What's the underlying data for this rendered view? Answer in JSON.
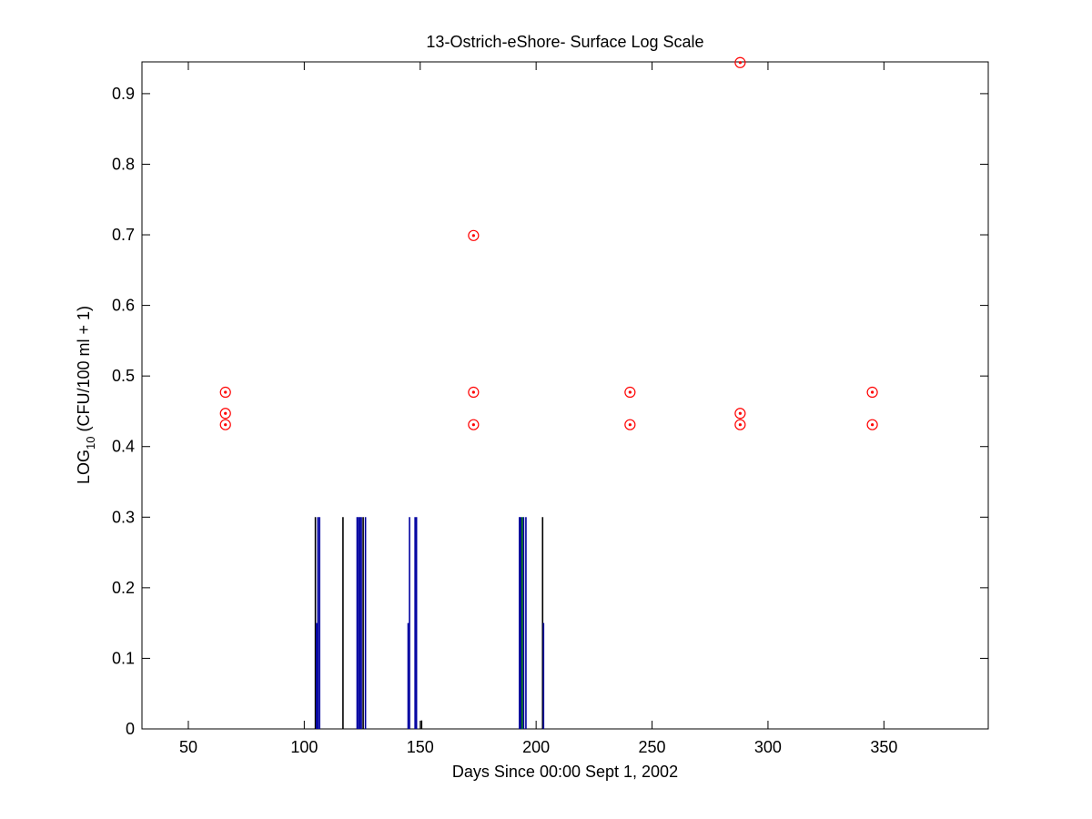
{
  "chart_data": {
    "type": "scatter",
    "title": "13-Ostrich-eShore- Surface Log Scale",
    "xlabel": "Days Since 00:00 Sept 1, 2002",
    "ylabel_main": "LOG",
    "ylabel_sub": "10",
    "ylabel_rest": " (CFU/100 ml + 1)",
    "xlim": [
      30,
      395
    ],
    "ylim": [
      0,
      0.945
    ],
    "xticks": [
      50,
      100,
      150,
      200,
      250,
      300,
      350
    ],
    "xtick_labels": [
      "50",
      "100",
      "150",
      "200",
      "250",
      "300",
      "350"
    ],
    "yticks": [
      0,
      0.1,
      0.2,
      0.3,
      0.4,
      0.5,
      0.6,
      0.7,
      0.8,
      0.9
    ],
    "ytick_labels": [
      "0",
      "0.1",
      "0.2",
      "0.3",
      "0.4",
      "0.5",
      "0.6",
      "0.7",
      "0.8",
      "0.9"
    ],
    "grid": false,
    "legend": "none",
    "colors": {
      "samples": "#ff0000",
      "bars_blue": "#0000a0",
      "bars_black": "#000000",
      "bars_green": "#008000"
    },
    "series": [
      {
        "marker": "circled-dot",
        "color": "#ff0000",
        "points": [
          {
            "x": 66,
            "y": 0.477
          },
          {
            "x": 66,
            "y": 0.447
          },
          {
            "x": 66,
            "y": 0.431
          },
          {
            "x": 173,
            "y": 0.699
          },
          {
            "x": 173,
            "y": 0.477
          },
          {
            "x": 173,
            "y": 0.431
          },
          {
            "x": 240.5,
            "y": 0.477
          },
          {
            "x": 240.5,
            "y": 0.431
          },
          {
            "x": 288,
            "y": 0.944
          },
          {
            "x": 288,
            "y": 0.447
          },
          {
            "x": 288,
            "y": 0.431
          },
          {
            "x": 345,
            "y": 0.477
          },
          {
            "x": 345,
            "y": 0.431
          }
        ]
      },
      {
        "marker": "vertical-bar",
        "bars": [
          {
            "x": 104.8,
            "y": 0.3,
            "color": "#000000"
          },
          {
            "x": 105.3,
            "y": 0.15,
            "color": "#0000a0"
          },
          {
            "x": 105.9,
            "y": 0.3,
            "color": "#0000a0"
          },
          {
            "x": 106.6,
            "y": 0.3,
            "color": "#0000a0"
          },
          {
            "x": 116.7,
            "y": 0.3,
            "color": "#000000"
          },
          {
            "x": 122.8,
            "y": 0.3,
            "color": "#0000a0"
          },
          {
            "x": 123.4,
            "y": 0.3,
            "color": "#0000a0"
          },
          {
            "x": 124.0,
            "y": 0.3,
            "color": "#0000a0"
          },
          {
            "x": 124.6,
            "y": 0.3,
            "color": "#0000a0"
          },
          {
            "x": 125.4,
            "y": 0.3,
            "color": "#000000"
          },
          {
            "x": 126.4,
            "y": 0.3,
            "color": "#0000a0"
          },
          {
            "x": 144.8,
            "y": 0.15,
            "color": "#0000a0"
          },
          {
            "x": 145.4,
            "y": 0.3,
            "color": "#0000a0"
          },
          {
            "x": 147.8,
            "y": 0.3,
            "color": "#0000a0"
          },
          {
            "x": 148.4,
            "y": 0.3,
            "color": "#0000a0"
          },
          {
            "x": 150.6,
            "y": 0.012,
            "color": "#000000"
          },
          {
            "x": 192.8,
            "y": 0.3,
            "color": "#0000a0"
          },
          {
            "x": 193.4,
            "y": 0.3,
            "color": "#0000a0"
          },
          {
            "x": 194.0,
            "y": 0.3,
            "color": "#008000"
          },
          {
            "x": 194.6,
            "y": 0.3,
            "color": "#0000a0"
          },
          {
            "x": 195.6,
            "y": 0.3,
            "color": "#0000a0"
          },
          {
            "x": 202.8,
            "y": 0.3,
            "color": "#000000"
          },
          {
            "x": 203.2,
            "y": 0.15,
            "color": "#0000a0"
          }
        ]
      }
    ]
  }
}
